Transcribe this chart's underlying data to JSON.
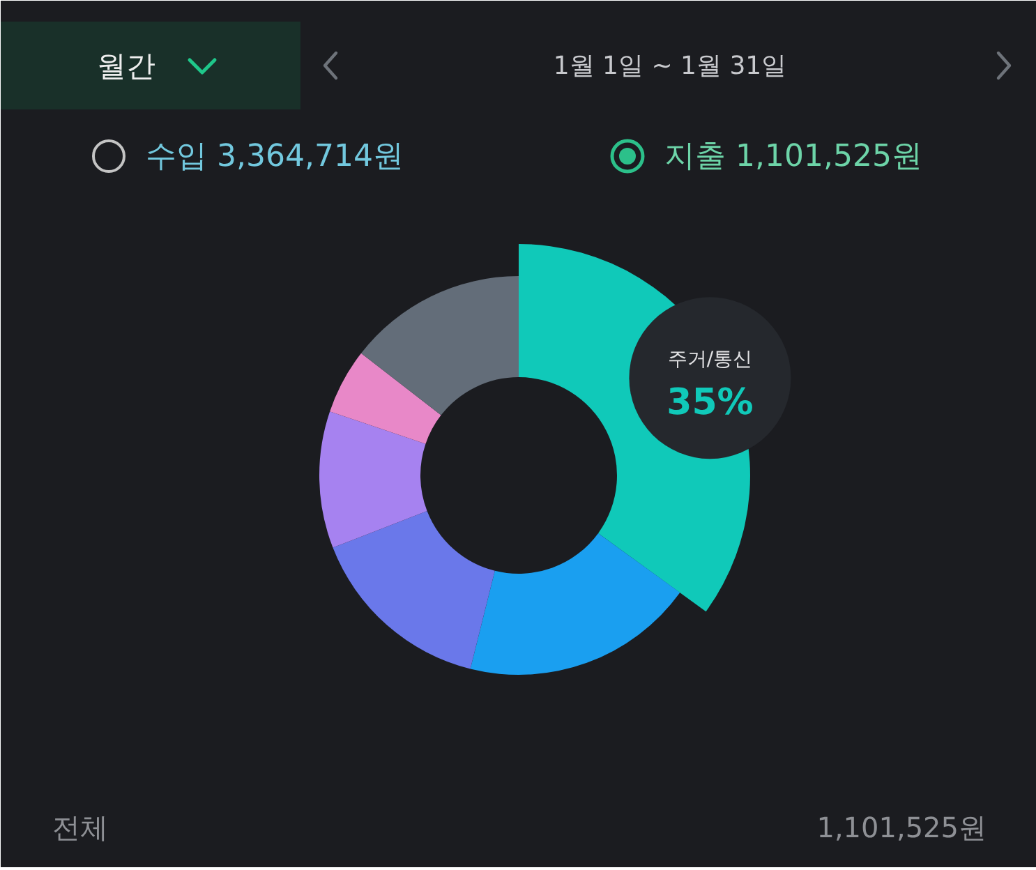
{
  "chart_data": {
    "type": "donut",
    "title": "1월 1일 ~ 1월 31일",
    "categories": [
      "주거/통신",
      null,
      null,
      null,
      null,
      null
    ],
    "values": [
      35,
      18.9,
      15.2,
      11.1,
      5.3,
      14.5
    ],
    "colors": [
      "#10c9b9",
      "#1a9ff0",
      "#6a78ea",
      "#a682f0",
      "#e888c8",
      "#636d79"
    ],
    "value_labels": [
      "35%",
      null,
      null,
      null,
      null,
      null
    ],
    "annotations": [
      "월간",
      "수입 3,364,714원",
      "지출 1,101,525원",
      "전체",
      "1,101,525원"
    ]
  }
}
